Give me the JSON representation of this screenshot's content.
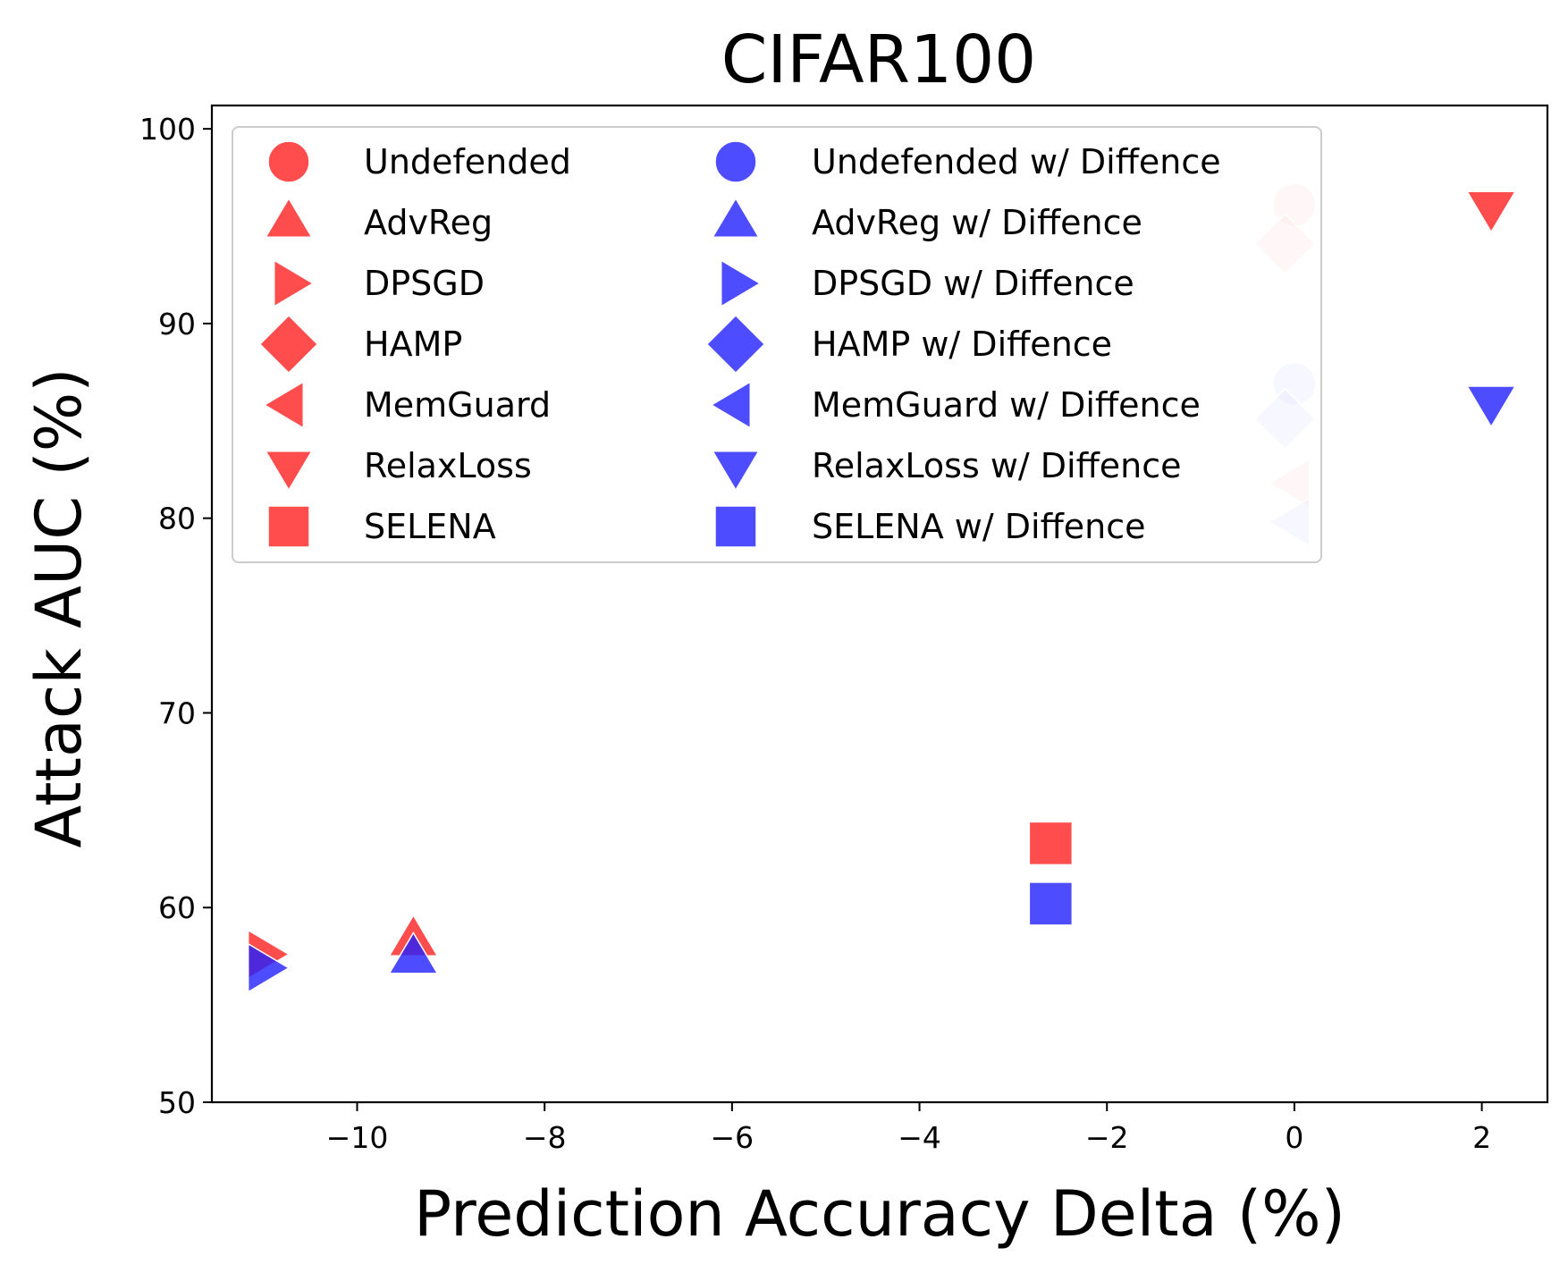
{
  "chart_data": {
    "type": "scatter",
    "title": "CIFAR100",
    "xlabel": "Prediction Accuracy Delta (%)",
    "ylabel": "Attack AUC (%)",
    "xlim": [
      -11.55,
      2.7
    ],
    "ylim": [
      50,
      101.2
    ],
    "x_ticks": [
      -10,
      -8,
      -6,
      -4,
      -2,
      0,
      2
    ],
    "x_tick_labels": [
      "−10",
      "−8",
      "−6",
      "−4",
      "−2",
      "0",
      "2"
    ],
    "y_ticks": [
      50,
      60,
      70,
      80,
      90,
      100
    ],
    "y_tick_labels": [
      "50",
      "60",
      "70",
      "80",
      "90",
      "100"
    ],
    "grid": false,
    "legend_position": "top-left",
    "legend_columns": 2,
    "colors": {
      "original": "#ff2020",
      "diffence": "#2020ff"
    },
    "series": [
      {
        "name": "Undefended",
        "group": "original",
        "marker": "circle",
        "points": [
          {
            "x": 0.0,
            "y": 96.1
          }
        ]
      },
      {
        "name": "AdvReg",
        "group": "original",
        "marker": "triangle-up",
        "points": [
          {
            "x": -9.4,
            "y": 58.3
          }
        ]
      },
      {
        "name": "DPSGD",
        "group": "original",
        "marker": "triangle-right",
        "points": [
          {
            "x": -11.0,
            "y": 57.6
          }
        ]
      },
      {
        "name": "HAMP",
        "group": "original",
        "marker": "diamond",
        "points": [
          {
            "x": -0.1,
            "y": 94.1
          }
        ]
      },
      {
        "name": "MemGuard",
        "group": "original",
        "marker": "triangle-left",
        "points": [
          {
            "x": 0.0,
            "y": 81.8
          }
        ]
      },
      {
        "name": "RelaxLoss",
        "group": "original",
        "marker": "triangle-down",
        "points": [
          {
            "x": 2.1,
            "y": 96.0
          }
        ]
      },
      {
        "name": "SELENA",
        "group": "original",
        "marker": "square",
        "points": [
          {
            "x": -2.6,
            "y": 63.3
          }
        ]
      },
      {
        "name": "Undefended w/ Diffence",
        "group": "diffence",
        "marker": "circle",
        "points": [
          {
            "x": 0.0,
            "y": 86.9
          }
        ]
      },
      {
        "name": "AdvReg w/ Diffence",
        "group": "diffence",
        "marker": "triangle-up",
        "points": [
          {
            "x": -9.4,
            "y": 57.4
          }
        ]
      },
      {
        "name": "DPSGD w/ Diffence",
        "group": "diffence",
        "marker": "triangle-right",
        "points": [
          {
            "x": -11.0,
            "y": 56.9
          }
        ]
      },
      {
        "name": "HAMP w/ Diffence",
        "group": "diffence",
        "marker": "diamond",
        "points": [
          {
            "x": -0.1,
            "y": 85.1
          }
        ]
      },
      {
        "name": "MemGuard w/ Diffence",
        "group": "diffence",
        "marker": "triangle-left",
        "points": [
          {
            "x": 0.0,
            "y": 79.8
          }
        ]
      },
      {
        "name": "RelaxLoss w/ Diffence",
        "group": "diffence",
        "marker": "triangle-down",
        "points": [
          {
            "x": 2.1,
            "y": 86.0
          }
        ]
      },
      {
        "name": "SELENA w/ Diffence",
        "group": "diffence",
        "marker": "square",
        "points": [
          {
            "x": -2.6,
            "y": 60.2
          }
        ]
      }
    ]
  }
}
